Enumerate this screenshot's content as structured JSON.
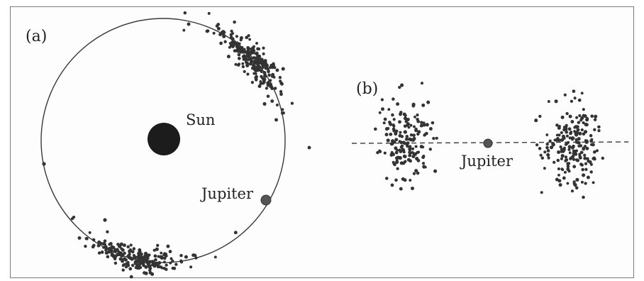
{
  "panel_a": {
    "label": "(a)",
    "sun_label": "Sun",
    "jupiter_label": "Jupiter"
  },
  "panel_b": {
    "label": "(b)",
    "jupiter_label": "Jupiter"
  },
  "colors": {
    "asteroid": "#333333",
    "sun": "#1c1c1c",
    "jupiter": "#555555",
    "line": "#3a3a3a",
    "border": "#7c7c7c"
  }
}
